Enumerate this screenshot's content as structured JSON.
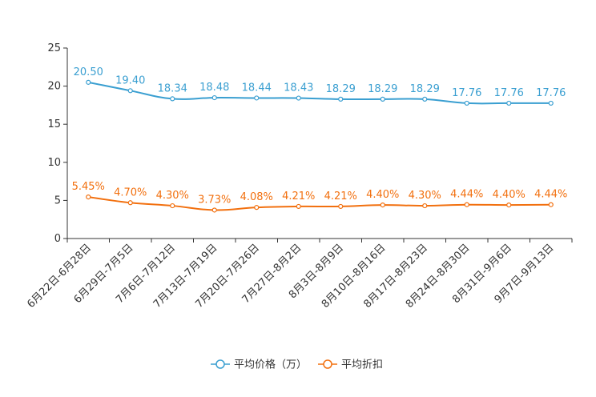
{
  "chart_data": {
    "type": "line",
    "title": "",
    "xlabel": "",
    "ylabel": "",
    "ylim": [
      0,
      25
    ],
    "yticks": [
      0,
      5,
      10,
      15,
      20,
      25
    ],
    "grid": false,
    "legend_position": "bottom-center",
    "categories": [
      "6月22日-6月28日",
      "6月29日-7月5日",
      "7月6日-7月12日",
      "7月13日-7月19日",
      "7月20日-7月26日",
      "7月27日-8月2日",
      "8月3日-8月9日",
      "8月10日-8月16日",
      "8月17日-8月23日",
      "8月24日-8月30日",
      "8月31日-9月6日",
      "9月7日-9月13日"
    ],
    "series": [
      {
        "name": "平均价格（万）",
        "color": "#3a9fd1",
        "values": [
          20.5,
          19.4,
          18.34,
          18.48,
          18.44,
          18.43,
          18.29,
          18.29,
          18.29,
          17.76,
          17.76,
          17.76
        ],
        "labels": [
          "20.50",
          "19.40",
          "18.34",
          "18.48",
          "18.44",
          "18.43",
          "18.29",
          "18.29",
          "18.29",
          "17.76",
          "17.76",
          "17.76"
        ]
      },
      {
        "name": "平均折扣",
        "color": "#f2700f",
        "values": [
          5.45,
          4.7,
          4.3,
          3.73,
          4.08,
          4.21,
          4.21,
          4.4,
          4.3,
          4.44,
          4.4,
          4.44
        ],
        "labels": [
          "5.45%",
          "4.70%",
          "4.30%",
          "3.73%",
          "4.08%",
          "4.21%",
          "4.21%",
          "4.40%",
          "4.30%",
          "4.44%",
          "4.40%",
          "4.44%"
        ]
      }
    ]
  }
}
